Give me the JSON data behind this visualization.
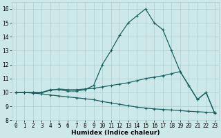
{
  "x": [
    0,
    1,
    2,
    3,
    4,
    5,
    6,
    7,
    8,
    9,
    10,
    11,
    12,
    13,
    14,
    15,
    16,
    17,
    18,
    19,
    20,
    21,
    22,
    23
  ],
  "line1": [
    10,
    10,
    10,
    10,
    10.2,
    10.2,
    10.1,
    10.1,
    10.2,
    10.5,
    12.0,
    13.0,
    14.1,
    15.0,
    15.5,
    16.0,
    15.0,
    14.5,
    13.0,
    11.5,
    10.5,
    9.5,
    10.0,
    8.5
  ],
  "line2": [
    10,
    10,
    10,
    10,
    10.15,
    10.25,
    10.2,
    10.2,
    10.25,
    10.3,
    10.4,
    10.5,
    10.6,
    10.7,
    10.85,
    11.0,
    11.1,
    11.2,
    11.35,
    11.5,
    10.5,
    9.5,
    10.0,
    8.5
  ],
  "line3": [
    10,
    10,
    9.95,
    9.9,
    9.82,
    9.75,
    9.68,
    9.62,
    9.55,
    9.48,
    9.35,
    9.25,
    9.15,
    9.05,
    8.95,
    8.88,
    8.82,
    8.78,
    8.74,
    8.7,
    8.65,
    8.62,
    8.58,
    8.55
  ],
  "bg_color": "#cce8e8",
  "grid_color": "#aacfcf",
  "line_color": "#1a6060",
  "marker": "+",
  "markersize": 3,
  "linewidth": 0.9,
  "xlabel": "Humidex (Indice chaleur)",
  "xlim": [
    -0.5,
    23.5
  ],
  "ylim": [
    8,
    16.5
  ],
  "yticks": [
    8,
    9,
    10,
    11,
    12,
    13,
    14,
    15,
    16
  ],
  "xticks": [
    0,
    1,
    2,
    3,
    4,
    5,
    6,
    7,
    8,
    9,
    10,
    11,
    12,
    13,
    14,
    15,
    16,
    17,
    18,
    19,
    20,
    21,
    22,
    23
  ],
  "xlabel_fontsize": 6.5,
  "tick_fontsize": 5.5
}
